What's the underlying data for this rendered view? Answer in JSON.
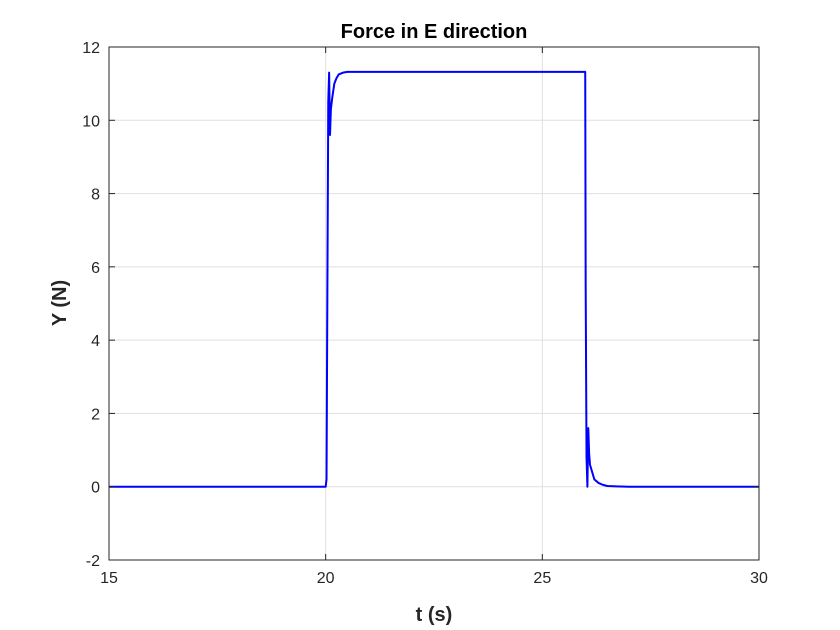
{
  "chart_data": {
    "type": "line",
    "title": "Force in E direction",
    "xlabel": "t (s)",
    "ylabel": "Y (N)",
    "xlim": [
      15,
      30
    ],
    "ylim": [
      -2,
      12
    ],
    "xticks": [
      15,
      20,
      25,
      30
    ],
    "xtick_labels": [
      "15",
      "20",
      "25",
      "30"
    ],
    "yticks": [
      -2,
      0,
      2,
      4,
      6,
      8,
      10,
      12
    ],
    "ytick_labels": [
      "-2",
      "0",
      "2",
      "4",
      "6",
      "8",
      "10",
      "12"
    ],
    "grid": true,
    "series": [
      {
        "color": "#0000ff",
        "x": [
          15,
          20.0,
          20.02,
          20.04,
          20.06,
          20.08,
          20.1,
          20.12,
          20.15,
          20.2,
          20.25,
          20.3,
          20.4,
          20.5,
          20.7,
          21.0,
          25.0,
          25.99,
          26.0,
          26.02,
          26.04,
          26.06,
          26.08,
          26.1,
          26.15,
          26.2,
          26.3,
          26.4,
          26.5,
          26.7,
          27.0,
          30.0
        ],
        "y": [
          0,
          0,
          0.2,
          5.5,
          10.5,
          11.3,
          9.6,
          10.3,
          10.6,
          11.0,
          11.15,
          11.25,
          11.3,
          11.32,
          11.32,
          11.32,
          11.32,
          11.32,
          5.5,
          0.8,
          0.0,
          1.6,
          0.9,
          0.6,
          0.4,
          0.2,
          0.1,
          0.05,
          0.02,
          0.01,
          0,
          0
        ]
      }
    ]
  }
}
